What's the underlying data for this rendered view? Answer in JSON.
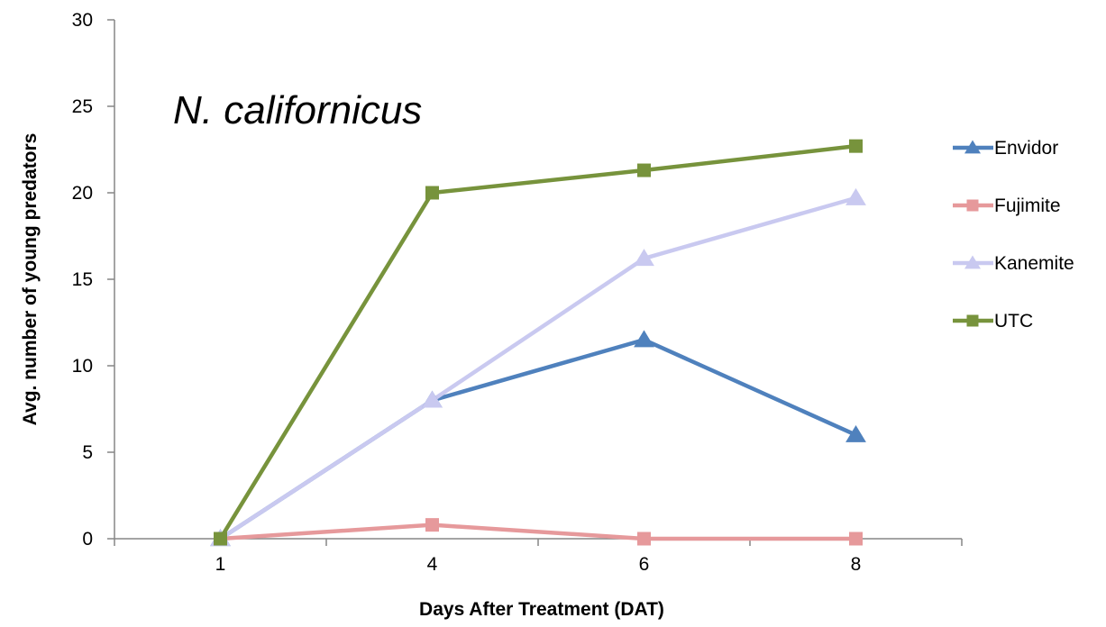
{
  "chart_data": {
    "type": "line",
    "title": "N. californicus",
    "xlabel": "Days After Treatment (DAT)",
    "ylabel": "Avg. number of young predators",
    "categories": [
      "1",
      "4",
      "6",
      "8"
    ],
    "ylim": [
      0,
      30
    ],
    "yticks": [
      "0",
      "5",
      "10",
      "15",
      "20",
      "25",
      "30"
    ],
    "grid": false,
    "legend_position": "right",
    "series": [
      {
        "name": "Envidor",
        "values": [
          0,
          8,
          11.5,
          6
        ],
        "color": "#4f81bd",
        "marker": "triangle"
      },
      {
        "name": "Fujimite",
        "values": [
          0,
          0.8,
          0,
          0
        ],
        "color": "#e6999b",
        "marker": "square"
      },
      {
        "name": "Kanemite",
        "values": [
          0,
          8,
          16.2,
          19.7
        ],
        "color": "#c9c9f0",
        "marker": "triangle"
      },
      {
        "name": "UTC",
        "values": [
          0,
          20,
          21.3,
          22.7
        ],
        "color": "#77933c",
        "marker": "square"
      }
    ]
  }
}
